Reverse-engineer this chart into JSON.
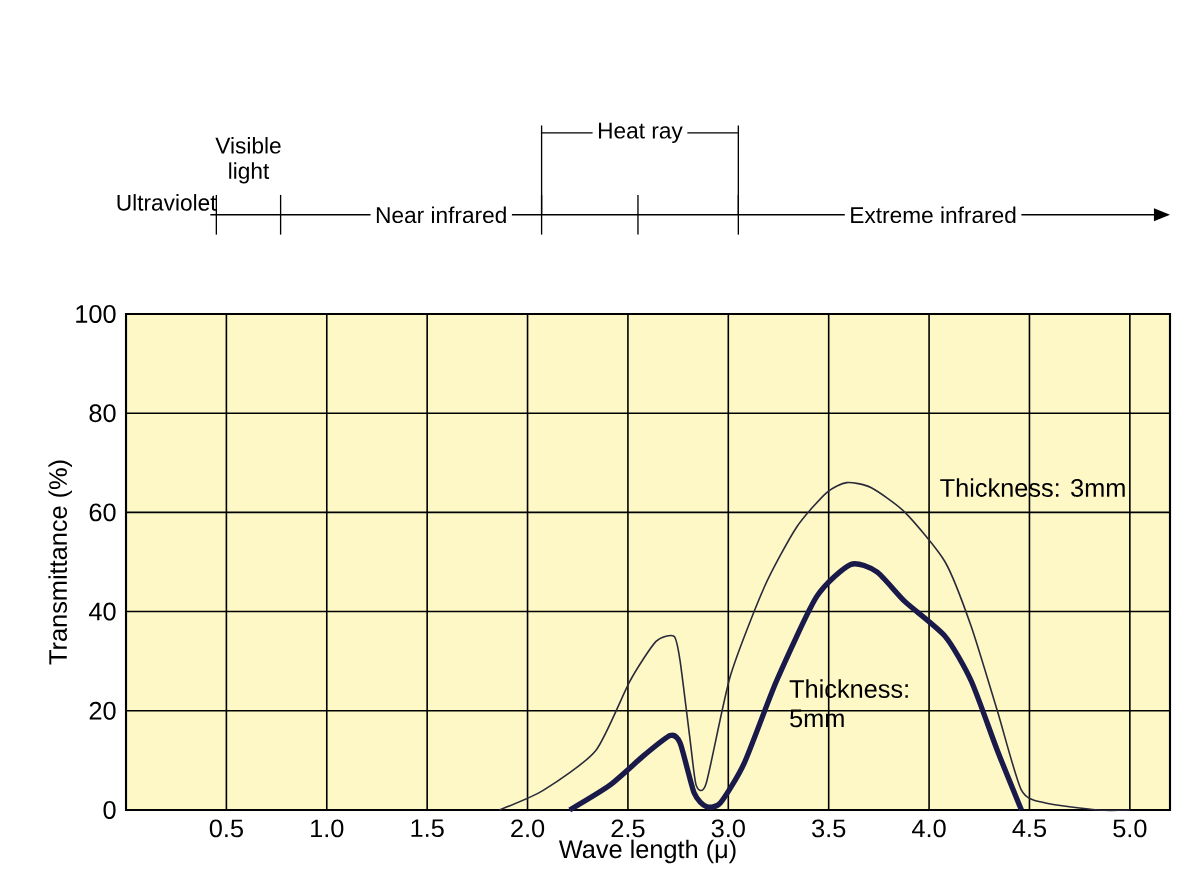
{
  "chart_data": {
    "type": "line",
    "xlabel": "Wave length (μ)",
    "ylabel": "Transmittance (%)",
    "xlim": [
      0,
      5.2
    ],
    "ylim": [
      0,
      100
    ],
    "xticks": [
      {
        "value": 0.5,
        "label": "0.5"
      },
      {
        "value": 1.0,
        "label": "1.0"
      },
      {
        "value": 1.5,
        "label": "1.5"
      },
      {
        "value": 2.0,
        "label": "2.0"
      },
      {
        "value": 2.5,
        "label": "2.5"
      },
      {
        "value": 3.0,
        "label": "3.0"
      },
      {
        "value": 3.5,
        "label": "3.5"
      },
      {
        "value": 4.0,
        "label": "4.0"
      },
      {
        "value": 4.5,
        "label": "4.5"
      },
      {
        "value": 5.0,
        "label": "5.0"
      }
    ],
    "yticks": [
      0,
      20,
      40,
      60,
      80,
      100
    ],
    "grid": true,
    "legend": false,
    "marker": "none",
    "line_style": "solid",
    "series": [
      {
        "name": "Thickness: 3mm",
        "color": "#2a2a3a",
        "x": [
          1.86,
          2.08,
          2.34,
          2.51,
          2.64,
          2.73,
          2.76,
          2.81,
          2.84,
          2.89,
          3.01,
          3.18,
          3.34,
          3.49,
          3.59,
          3.71,
          3.88,
          4.08,
          4.21,
          4.34,
          4.46,
          4.58,
          4.84,
          5.0
        ],
        "values": [
          0,
          4,
          12,
          26,
          34,
          35,
          30,
          14,
          5,
          5.4,
          27,
          45,
          57,
          64,
          66,
          65,
          60,
          50,
          37,
          20,
          4,
          1.4,
          0,
          0
        ]
      },
      {
        "name": "Thickness: 5mm",
        "color": "#1a1a4a",
        "x": [
          2.21,
          2.41,
          2.58,
          2.71,
          2.76,
          2.83,
          2.89,
          2.96,
          3.08,
          3.24,
          3.44,
          3.61,
          3.74,
          3.88,
          4.08,
          4.21,
          4.34,
          4.46
        ],
        "values": [
          0,
          5,
          11,
          15,
          13.5,
          3.4,
          0.7,
          1.4,
          9.5,
          26,
          43,
          49.5,
          48,
          42,
          35,
          26,
          12,
          0
        ]
      }
    ],
    "annotations": [
      "Ultraviolet",
      "Visible light",
      "Near infrared",
      "Heat ray",
      "Extreme infrared"
    ]
  }
}
